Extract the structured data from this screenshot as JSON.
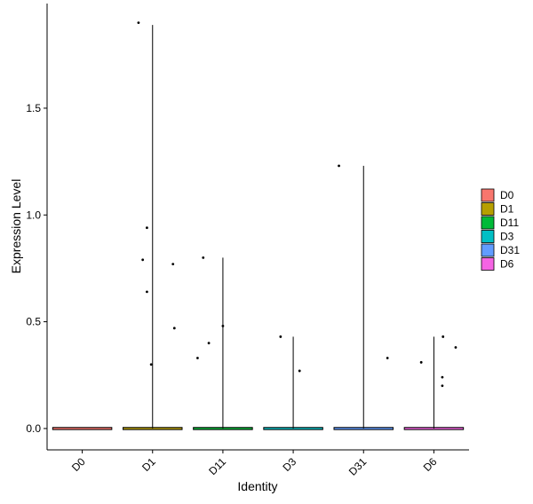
{
  "chart_data": {
    "type": "violin",
    "xlabel": "Identity",
    "ylabel": "Expression Level",
    "categories": [
      "D0",
      "D1",
      "D11",
      "D3",
      "D31",
      "D6"
    ],
    "ylim": [
      -0.1,
      1.99
    ],
    "yticks": [
      0.0,
      0.5,
      1.0,
      1.5
    ],
    "ytick_labels": [
      "0.0",
      "0.5",
      "1.0",
      "1.5"
    ],
    "legend": {
      "position": "right",
      "entries": [
        {
          "label": "D0",
          "color": "#F8766D"
        },
        {
          "label": "D1",
          "color": "#B79F00"
        },
        {
          "label": "D11",
          "color": "#00BA38"
        },
        {
          "label": "D3",
          "color": "#00BFC4"
        },
        {
          "label": "D31",
          "color": "#619CFF"
        },
        {
          "label": "D6",
          "color": "#F564E3"
        }
      ]
    },
    "violins": [
      {
        "group": "D0",
        "max": 0.0
      },
      {
        "group": "D1",
        "max": 1.89
      },
      {
        "group": "D11",
        "max": 0.8
      },
      {
        "group": "D3",
        "max": 0.43
      },
      {
        "group": "D31",
        "max": 1.23
      },
      {
        "group": "D6",
        "max": 0.43
      }
    ],
    "points": [
      {
        "group": "D1",
        "dx": -0.2,
        "y": 1.9
      },
      {
        "group": "D1",
        "dx": -0.08,
        "y": 0.94
      },
      {
        "group": "D1",
        "dx": -0.14,
        "y": 0.79
      },
      {
        "group": "D1",
        "dx": -0.08,
        "y": 0.64
      },
      {
        "group": "D1",
        "dx": 0.29,
        "y": 0.77
      },
      {
        "group": "D1",
        "dx": 0.31,
        "y": 0.47
      },
      {
        "group": "D1",
        "dx": -0.02,
        "y": 0.3
      },
      {
        "group": "D11",
        "dx": -0.28,
        "y": 0.8
      },
      {
        "group": "D11",
        "dx": -0.2,
        "y": 0.4
      },
      {
        "group": "D11",
        "dx": -0.36,
        "y": 0.33
      },
      {
        "group": "D11",
        "dx": 0.0,
        "y": 0.48
      },
      {
        "group": "D3",
        "dx": -0.18,
        "y": 0.43
      },
      {
        "group": "D3",
        "dx": 0.09,
        "y": 0.27
      },
      {
        "group": "D31",
        "dx": -0.35,
        "y": 1.23
      },
      {
        "group": "D31",
        "dx": 0.34,
        "y": 0.33
      },
      {
        "group": "D6",
        "dx": -0.18,
        "y": 0.31
      },
      {
        "group": "D6",
        "dx": 0.13,
        "y": 0.43
      },
      {
        "group": "D6",
        "dx": 0.31,
        "y": 0.38
      },
      {
        "group": "D6",
        "dx": 0.12,
        "y": 0.24
      },
      {
        "group": "D6",
        "dx": 0.12,
        "y": 0.2
      }
    ]
  }
}
